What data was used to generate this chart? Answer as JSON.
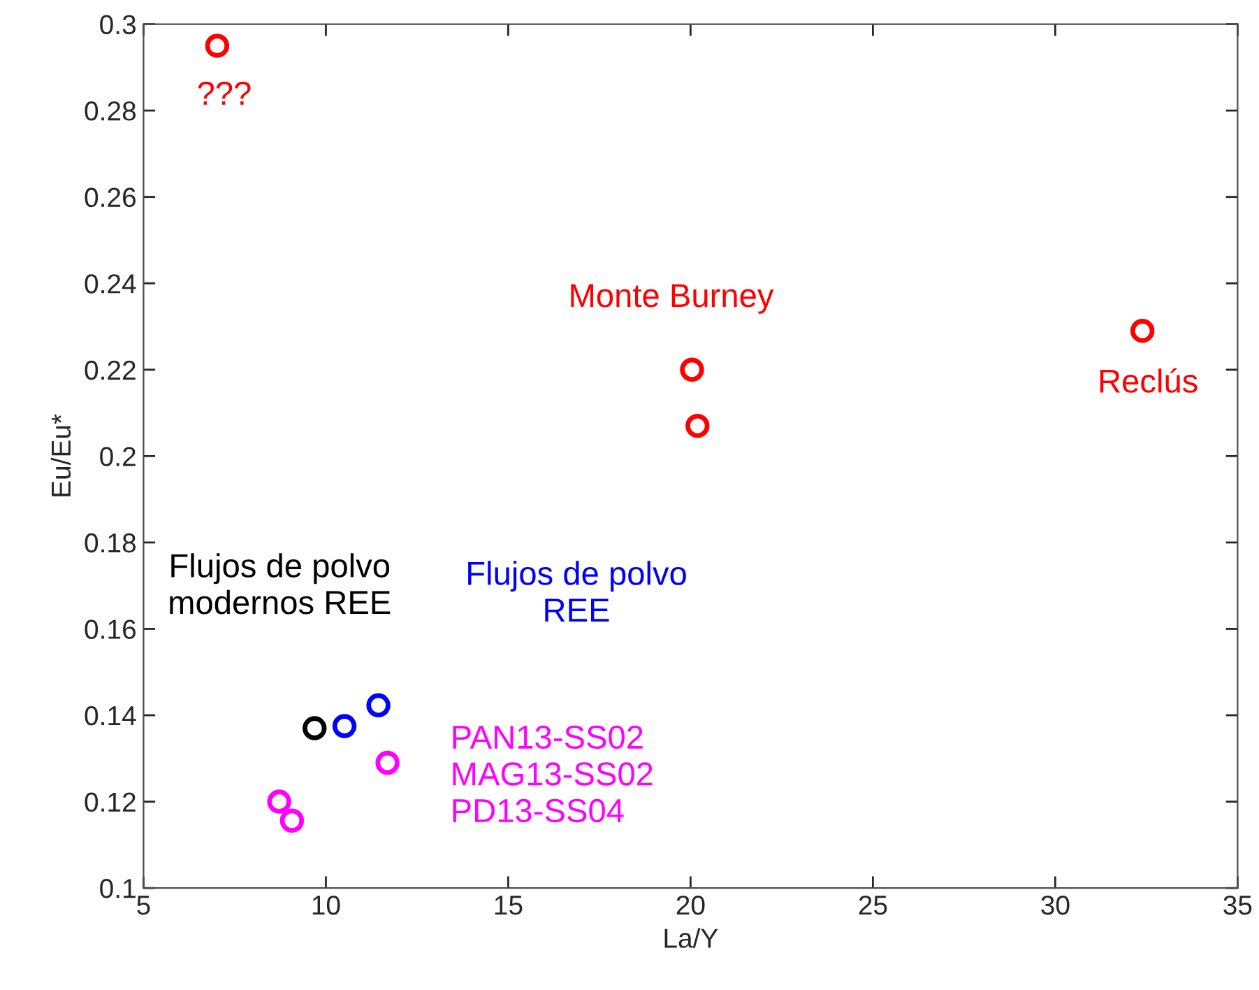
{
  "chart_data": {
    "type": "scatter",
    "xlabel": "La/Y",
    "ylabel": "Eu/Eu*",
    "xlim": [
      5,
      35
    ],
    "xticks": [
      5,
      10,
      15,
      20,
      25,
      30,
      35
    ],
    "ylim": [
      0.1,
      0.3
    ],
    "yticks": [
      0.1,
      0.12,
      0.14,
      0.16,
      0.18,
      0.2,
      0.22,
      0.24,
      0.26,
      0.28,
      0.3
    ],
    "marker": "circle",
    "grid": false,
    "legend": false,
    "series": [
      {
        "name": "???",
        "color": "#ff0000",
        "x": [
          7.02
        ],
        "values": [
          0.295
        ]
      },
      {
        "name": "Monte Burney",
        "color": "#ff0000",
        "x": [
          20.04,
          20.19
        ],
        "values": [
          0.22,
          0.207
        ]
      },
      {
        "name": "Reclús",
        "color": "#ff0000",
        "x": [
          32.39
        ],
        "values": [
          0.229
        ]
      },
      {
        "name": "Flujos de polvo\nmodernos REE",
        "color": "#000000",
        "x": [
          9.69
        ],
        "values": [
          0.137
        ]
      },
      {
        "name": "Flujos de polvo\nREE",
        "color": "#0000ff",
        "x": [
          10.51,
          11.44
        ],
        "values": [
          0.1375,
          0.1423
        ]
      },
      {
        "name": "PAN13-SS02\nMAG13-SS02\nPD13-SS04",
        "color": "#ff00ff",
        "x": [
          11.69,
          8.72,
          9.07
        ],
        "values": [
          0.129,
          0.12,
          0.1156
        ]
      }
    ]
  }
}
